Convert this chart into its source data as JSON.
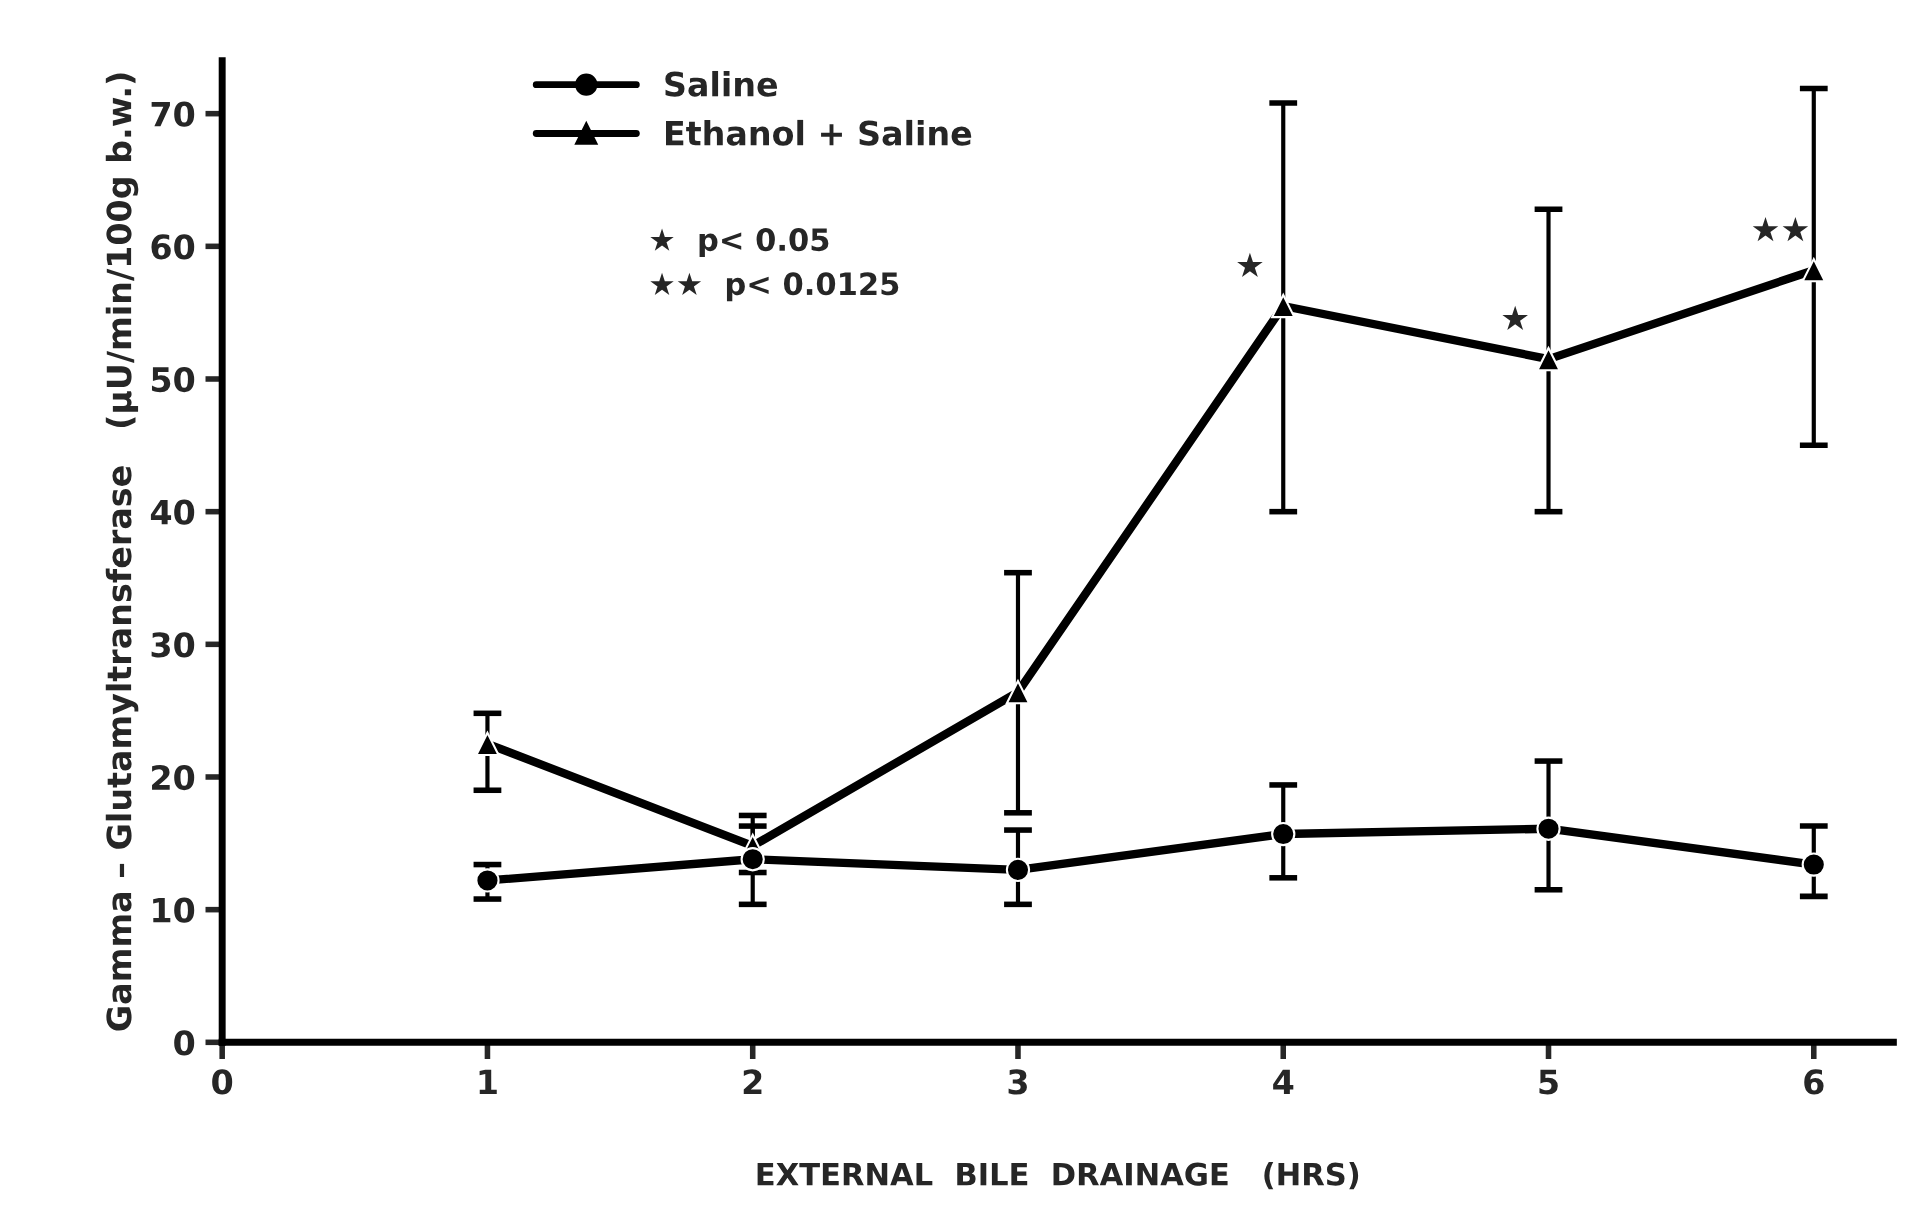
{
  "chart_data": {
    "type": "line",
    "xlabel": "EXTERNAL  BILE  DRAINAGE   (HRS)",
    "ylabel": "Gamma – Glutamyltransferase   (μU/min/100g b.w.)",
    "x": [
      1,
      2,
      3,
      4,
      5,
      6
    ],
    "xlim": [
      0,
      6.3
    ],
    "xticks": [
      0,
      1,
      2,
      3,
      4,
      5,
      6
    ],
    "ylim": [
      0,
      74
    ],
    "yticks": [
      0,
      10,
      20,
      30,
      40,
      50,
      60,
      70
    ],
    "grid": false,
    "legend": "top left",
    "line_style": "solid",
    "series": [
      {
        "name": "Saline",
        "color": "#000000",
        "marker": "circle",
        "values": [
          12.2,
          13.8,
          13.0,
          15.7,
          16.1,
          13.4
        ],
        "errors": [
          [
            10.8,
            13.4
          ],
          [
            10.4,
            16.3
          ],
          [
            10.4,
            16.0
          ],
          [
            12.4,
            19.4
          ],
          [
            11.5,
            21.2
          ],
          [
            11.0,
            16.3
          ]
        ]
      },
      {
        "name": "Ethanol + Saline",
        "color": "#000000",
        "marker": "triangle",
        "values": [
          22.5,
          14.8,
          26.4,
          55.5,
          51.5,
          58.2
        ],
        "errors": [
          [
            19.0,
            24.8
          ],
          [
            12.8,
            17.1
          ],
          [
            17.3,
            35.4
          ],
          [
            40.0,
            70.8
          ],
          [
            40.0,
            62.8
          ],
          [
            45.0,
            71.9
          ]
        ]
      }
    ],
    "annotations": [
      "★  p< 0.05",
      "★★  p< 0.0125",
      {
        "text": "★",
        "x": 4,
        "y": 55.5
      },
      {
        "text": "★",
        "x": 5,
        "y": 51.5
      },
      {
        "text": "★★",
        "x": 6,
        "y": 58.2
      }
    ]
  }
}
